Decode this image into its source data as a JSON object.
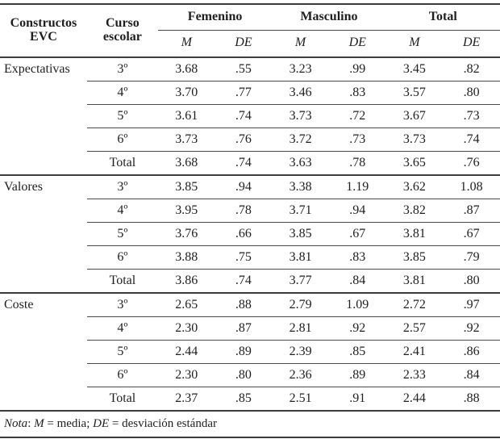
{
  "meta": {
    "background_color": "#ffffff",
    "rule_color": "#3b3b3b",
    "light_rule_color": "#4a4a4a",
    "text_color": "#1f1f1f"
  },
  "table": {
    "col1_header": "Constructos EVC",
    "col2_header": "Curso escolar",
    "groups": [
      "Femenino",
      "Masculino",
      "Total"
    ],
    "sub_m": "M",
    "sub_de": "DE",
    "sections": [
      {
        "label": "Expectativas",
        "rows": [
          {
            "curso": "3º",
            "values": [
              "3.68",
              ".55",
              "3.23",
              ".99",
              "3.45",
              ".82"
            ]
          },
          {
            "curso": "4º",
            "values": [
              "3.70",
              ".77",
              "3.46",
              ".83",
              "3.57",
              ".80"
            ]
          },
          {
            "curso": "5º",
            "values": [
              "3.61",
              ".74",
              "3.73",
              ".72",
              "3.67",
              ".73"
            ]
          },
          {
            "curso": "6º",
            "values": [
              "3.73",
              ".76",
              "3.72",
              ".73",
              "3.73",
              ".74"
            ]
          },
          {
            "curso": "Total",
            "values": [
              "3.68",
              ".74",
              "3.63",
              ".78",
              "3.65",
              ".76"
            ]
          }
        ]
      },
      {
        "label": "Valores",
        "rows": [
          {
            "curso": "3º",
            "values": [
              "3.85",
              ".94",
              "3.38",
              "1.19",
              "3.62",
              "1.08"
            ]
          },
          {
            "curso": "4º",
            "values": [
              "3.95",
              ".78",
              "3.71",
              ".94",
              "3.82",
              ".87"
            ]
          },
          {
            "curso": "5º",
            "values": [
              "3.76",
              ".66",
              "3.85",
              ".67",
              "3.81",
              ".67"
            ]
          },
          {
            "curso": "6º",
            "values": [
              "3.88",
              ".75",
              "3.81",
              ".83",
              "3.85",
              ".79"
            ]
          },
          {
            "curso": "Total",
            "values": [
              "3.86",
              ".74",
              "3.77",
              ".84",
              "3.81",
              ".80"
            ]
          }
        ]
      },
      {
        "label": "Coste",
        "rows": [
          {
            "curso": "3º",
            "values": [
              "2.65",
              ".88",
              "2.79",
              "1.09",
              "2.72",
              ".97"
            ]
          },
          {
            "curso": "4º",
            "values": [
              "2.30",
              ".87",
              "2.81",
              ".92",
              "2.57",
              ".92"
            ]
          },
          {
            "curso": "5º",
            "values": [
              "2.44",
              ".89",
              "2.39",
              ".85",
              "2.41",
              ".86"
            ]
          },
          {
            "curso": "6º",
            "values": [
              "2.30",
              ".80",
              "2.36",
              ".89",
              "2.33",
              ".84"
            ]
          },
          {
            "curso": "Total",
            "values": [
              "2.37",
              ".85",
              "2.51",
              ".91",
              "2.44",
              ".88"
            ]
          }
        ]
      }
    ]
  },
  "note": {
    "label": "Nota",
    "after_label": ": ",
    "m_symbol": "M",
    "m_text": " = media; ",
    "de_symbol": "DE",
    "de_text": " = desviación estándar"
  }
}
